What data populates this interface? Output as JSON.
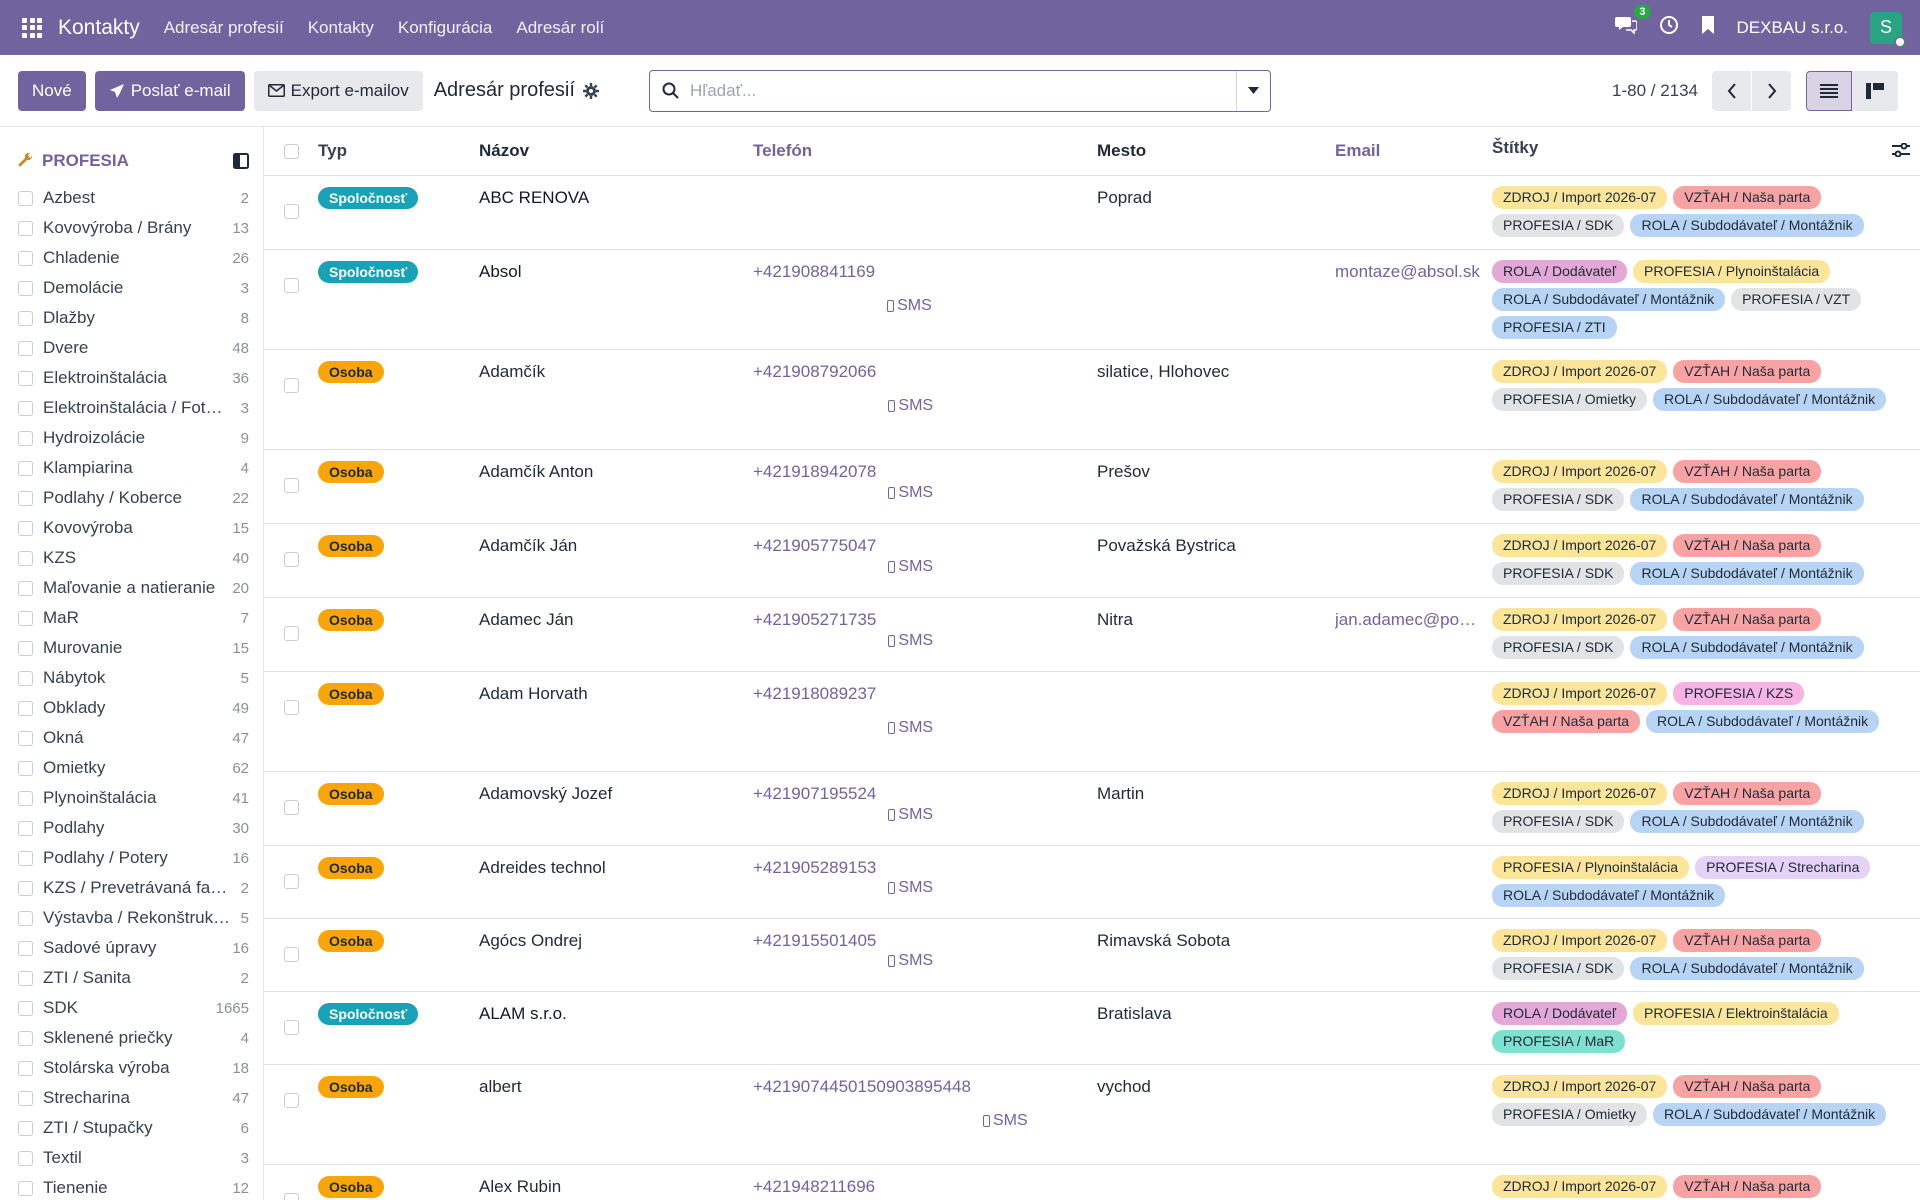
{
  "nav": {
    "app_name": "Kontakty",
    "menu": [
      "Adresár profesií",
      "Kontakty",
      "Konfigurácia",
      "Adresár rolí"
    ],
    "chat_count": "3",
    "company": "DEXBAU s.r.o.",
    "avatar_letter": "S"
  },
  "toolbar": {
    "new_label": "Nové",
    "send_email_label": "Poslať e-mail",
    "export_label": "Export e-mailov",
    "page_title": "Adresár profesií",
    "search_placeholder": "Hľadať...",
    "pager": "1-80 / 2134"
  },
  "sidebar": {
    "title": "PROFESIA",
    "items": [
      {
        "label": "Azbest",
        "count": "2"
      },
      {
        "label": "Kovovýroba / Brány",
        "count": "13"
      },
      {
        "label": "Chladenie",
        "count": "26"
      },
      {
        "label": "Demolácie",
        "count": "3"
      },
      {
        "label": "Dlažby",
        "count": "8"
      },
      {
        "label": "Dvere",
        "count": "48"
      },
      {
        "label": "Elektroinštalácia",
        "count": "36"
      },
      {
        "label": "Elektroinštalácia / Fot…",
        "count": "3"
      },
      {
        "label": "Hydroizolácie",
        "count": "9"
      },
      {
        "label": "Klampiarina",
        "count": "4"
      },
      {
        "label": "Podlahy / Koberce",
        "count": "22"
      },
      {
        "label": "Kovovýroba",
        "count": "15"
      },
      {
        "label": "KZS",
        "count": "40"
      },
      {
        "label": "Maľovanie a natieranie",
        "count": "20"
      },
      {
        "label": "MaR",
        "count": "7"
      },
      {
        "label": "Murovanie",
        "count": "15"
      },
      {
        "label": "Nábytok",
        "count": "5"
      },
      {
        "label": "Obklady",
        "count": "49"
      },
      {
        "label": "Okná",
        "count": "47"
      },
      {
        "label": "Omietky",
        "count": "62"
      },
      {
        "label": "Plynoinštalácia",
        "count": "41"
      },
      {
        "label": "Podlahy",
        "count": "30"
      },
      {
        "label": "Podlahy / Potery",
        "count": "16"
      },
      {
        "label": "KZS / Prevetrávaná fas…",
        "count": "2"
      },
      {
        "label": "Výstavba / Rekonštruk…",
        "count": "5"
      },
      {
        "label": "Sadové úpravy",
        "count": "16"
      },
      {
        "label": "ZTI / Sanita",
        "count": "2"
      },
      {
        "label": "SDK",
        "count": "1665"
      },
      {
        "label": "Sklenené priečky",
        "count": "4"
      },
      {
        "label": "Stolárska výroba",
        "count": "18"
      },
      {
        "label": "Strecharina",
        "count": "47"
      },
      {
        "label": "ZTI / Stupačky",
        "count": "6"
      },
      {
        "label": "Textil",
        "count": "3"
      },
      {
        "label": "Tienenie",
        "count": "12"
      }
    ]
  },
  "table": {
    "headers": {
      "type": "Typ",
      "name": "Názov",
      "phone": "Telefón",
      "city": "Mesto",
      "email": "Email",
      "tags": "Štítky"
    },
    "sms_label": "SMS",
    "tag_colors": {
      "yellow": "#fbe59a",
      "red": "#f8a3a3",
      "grey": "#e2e3e5",
      "blue": "#b7d4f5",
      "pink": "#e3a8d6",
      "purple": "#e4d3f7",
      "magenta": "#f6b3e3",
      "teal": "#7fe0d0"
    },
    "rows": [
      {
        "type": "Spoločnosť",
        "kind": "company",
        "name": "ABC RENOVA",
        "phone": "",
        "city": "Poprad",
        "email": "",
        "height": 74,
        "tags": [
          {
            "t": "ZDROJ / Import 2026-07",
            "c": "yellow"
          },
          {
            "t": "VZŤAH / Naša parta",
            "c": "red"
          },
          {
            "t": "PROFESIA / SDK",
            "c": "grey"
          },
          {
            "t": "ROLA / Subdodávateľ / Montážnik",
            "c": "blue"
          }
        ]
      },
      {
        "type": "Spoločnosť",
        "kind": "company",
        "name": "Absol",
        "phone": "+421908841169",
        "city": "",
        "email": "montaze@absol.sk",
        "height": 100,
        "tags": [
          {
            "t": "ROLA / Dodávateľ",
            "c": "pink"
          },
          {
            "t": "PROFESIA / Plynoinštalácia",
            "c": "yellow"
          },
          {
            "t": "ROLA / Subdodávateľ / Montážnik",
            "c": "blue"
          },
          {
            "t": "PROFESIA / VZT",
            "c": "grey"
          },
          {
            "t": "PROFESIA / ZTI",
            "c": "blue"
          }
        ]
      },
      {
        "type": "Osoba",
        "kind": "person",
        "name": "Adamčík",
        "phone": "+421908792066",
        "city": "silatice, Hlohovec",
        "email": "",
        "height": 100,
        "tags": [
          {
            "t": "ZDROJ / Import 2026-07",
            "c": "yellow"
          },
          {
            "t": "VZŤAH / Naša parta",
            "c": "red"
          },
          {
            "t": "PROFESIA / Omietky",
            "c": "grey"
          },
          {
            "t": "ROLA / Subdodávateľ / Montážnik",
            "c": "blue"
          }
        ]
      },
      {
        "type": "Osoba",
        "kind": "person",
        "name": "Adamčík Anton",
        "phone": "+421918942078",
        "city": "Prešov",
        "email": "",
        "height": 74,
        "tags": [
          {
            "t": "ZDROJ / Import 2026-07",
            "c": "yellow"
          },
          {
            "t": "VZŤAH / Naša parta",
            "c": "red"
          },
          {
            "t": "PROFESIA / SDK",
            "c": "grey"
          },
          {
            "t": "ROLA / Subdodávateľ / Montážnik",
            "c": "blue"
          }
        ]
      },
      {
        "type": "Osoba",
        "kind": "person",
        "name": "Adamčík Ján",
        "phone": "+421905775047",
        "city": "Považská Bystrica",
        "email": "",
        "height": 74,
        "tags": [
          {
            "t": "ZDROJ / Import 2026-07",
            "c": "yellow"
          },
          {
            "t": "VZŤAH / Naša parta",
            "c": "red"
          },
          {
            "t": "PROFESIA / SDK",
            "c": "grey"
          },
          {
            "t": "ROLA / Subdodávateľ / Montážnik",
            "c": "blue"
          }
        ]
      },
      {
        "type": "Osoba",
        "kind": "person",
        "name": "Adamec Ján",
        "phone": "+421905271735",
        "city": "Nitra",
        "email": "jan.adamec@pos…",
        "height": 74,
        "tags": [
          {
            "t": "ZDROJ / Import 2026-07",
            "c": "yellow"
          },
          {
            "t": "VZŤAH / Naša parta",
            "c": "red"
          },
          {
            "t": "PROFESIA / SDK",
            "c": "grey"
          },
          {
            "t": "ROLA / Subdodávateľ / Montážnik",
            "c": "blue"
          }
        ]
      },
      {
        "type": "Osoba",
        "kind": "person",
        "name": "Adam Horvath",
        "phone": "+421918089237",
        "city": "",
        "email": "",
        "height": 100,
        "tags": [
          {
            "t": "ZDROJ / Import 2026-07",
            "c": "yellow"
          },
          {
            "t": "PROFESIA / KZS",
            "c": "magenta"
          },
          {
            "t": "VZŤAH / Naša parta",
            "c": "red"
          },
          {
            "t": "ROLA / Subdodávateľ / Montážnik",
            "c": "blue"
          }
        ]
      },
      {
        "type": "Osoba",
        "kind": "person",
        "name": "Adamovský Jozef",
        "phone": "+421907195524",
        "city": "Martin",
        "email": "",
        "height": 74,
        "tags": [
          {
            "t": "ZDROJ / Import 2026-07",
            "c": "yellow"
          },
          {
            "t": "VZŤAH / Naša parta",
            "c": "red"
          },
          {
            "t": "PROFESIA / SDK",
            "c": "grey"
          },
          {
            "t": "ROLA / Subdodávateľ / Montážnik",
            "c": "blue"
          }
        ]
      },
      {
        "type": "Osoba",
        "kind": "person",
        "name": "Adreides technol",
        "phone": "+421905289153",
        "city": "",
        "email": "",
        "height": 73,
        "tags": [
          {
            "t": "PROFESIA / Plynoinštalácia",
            "c": "yellow"
          },
          {
            "t": "PROFESIA / Strecharina",
            "c": "purple"
          },
          {
            "t": "ROLA / Subdodávateľ / Montážnik",
            "c": "blue"
          }
        ]
      },
      {
        "type": "Osoba",
        "kind": "person",
        "name": "Agócs Ondrej",
        "phone": "+421915501405",
        "city": "Rimavská Sobota",
        "email": "",
        "height": 73,
        "tags": [
          {
            "t": "ZDROJ / Import 2026-07",
            "c": "yellow"
          },
          {
            "t": "VZŤAH / Naša parta",
            "c": "red"
          },
          {
            "t": "PROFESIA / SDK",
            "c": "grey"
          },
          {
            "t": "ROLA / Subdodávateľ / Montážnik",
            "c": "blue"
          }
        ]
      },
      {
        "type": "Spoločnosť",
        "kind": "company",
        "name": "ALAM s.r.o.",
        "phone": "",
        "city": "Bratislava",
        "email": "",
        "height": 73,
        "tags": [
          {
            "t": "ROLA / Dodávateľ",
            "c": "pink"
          },
          {
            "t": "PROFESIA / Elektroinštalácia",
            "c": "yellow"
          },
          {
            "t": "PROFESIA / MaR",
            "c": "teal"
          }
        ]
      },
      {
        "type": "Osoba",
        "kind": "person",
        "name": "albert",
        "phone": "+421907445015090389544​8",
        "city": "vychod",
        "email": "",
        "height": 100,
        "tags": [
          {
            "t": "ZDROJ / Import 2026-07",
            "c": "yellow"
          },
          {
            "t": "VZŤAH / Naša parta",
            "c": "red"
          },
          {
            "t": "PROFESIA / Omietky",
            "c": "grey"
          },
          {
            "t": "ROLA / Subdodávateľ / Montážnik",
            "c": "blue"
          }
        ]
      },
      {
        "type": "Osoba",
        "kind": "person",
        "name": "Alex Rubin",
        "phone": "+421948211696",
        "city": "",
        "email": "",
        "height": 74,
        "tags": [
          {
            "t": "ZDROJ / Import 2026-07",
            "c": "yellow"
          },
          {
            "t": "VZŤAH / Naša parta",
            "c": "red"
          }
        ]
      }
    ]
  }
}
